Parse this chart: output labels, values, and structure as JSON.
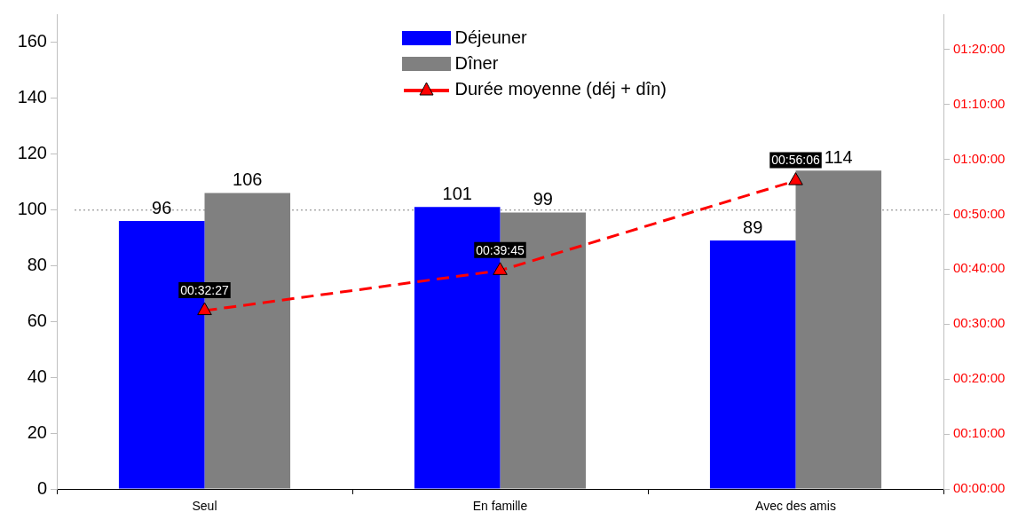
{
  "chart_data": {
    "type": "bar",
    "categories": [
      "Seul",
      "En famille",
      "Avec des amis"
    ],
    "series": [
      {
        "name": "Déjeuner",
        "color": "#0000ff",
        "values": [
          96,
          101,
          89
        ],
        "value_labels": [
          "96",
          "101",
          "89"
        ]
      },
      {
        "name": "Dîner",
        "color": "#808080",
        "values": [
          106,
          99,
          114
        ],
        "value_labels": [
          "106",
          "99",
          "114"
        ]
      },
      {
        "name": "Durée moyenne (déj + dîn)",
        "type": "line",
        "axis": "y2",
        "color": "#ff0000",
        "marker": "triangle",
        "line_style": "dashed",
        "values": [
          32.45,
          39.75,
          56.1
        ],
        "value_labels": [
          "00:32:27",
          "00:39:45",
          "00:56:06"
        ]
      }
    ],
    "ylim": [
      0,
      170
    ],
    "yticks": [
      0,
      20,
      40,
      60,
      80,
      100,
      120,
      140,
      160
    ],
    "y2lim": [
      0,
      86.4
    ],
    "y2ticks": [
      {
        "value": 0,
        "label": "00:00:00"
      },
      {
        "value": 10,
        "label": "00:10:00"
      },
      {
        "value": 20,
        "label": "00:20:00"
      },
      {
        "value": 30,
        "label": "00:30:00"
      },
      {
        "value": 40,
        "label": "00:40:00"
      },
      {
        "value": 50,
        "label": "00:50:00"
      },
      {
        "value": 60,
        "label": "01:00:00"
      },
      {
        "value": 70,
        "label": "01:10:00"
      },
      {
        "value": 80,
        "label": "01:20:00"
      }
    ],
    "ref_lines": [
      {
        "axis": "y",
        "value": 100,
        "color": "#808080",
        "line_style": "dotted"
      }
    ],
    "grid": false,
    "legend": "top"
  }
}
